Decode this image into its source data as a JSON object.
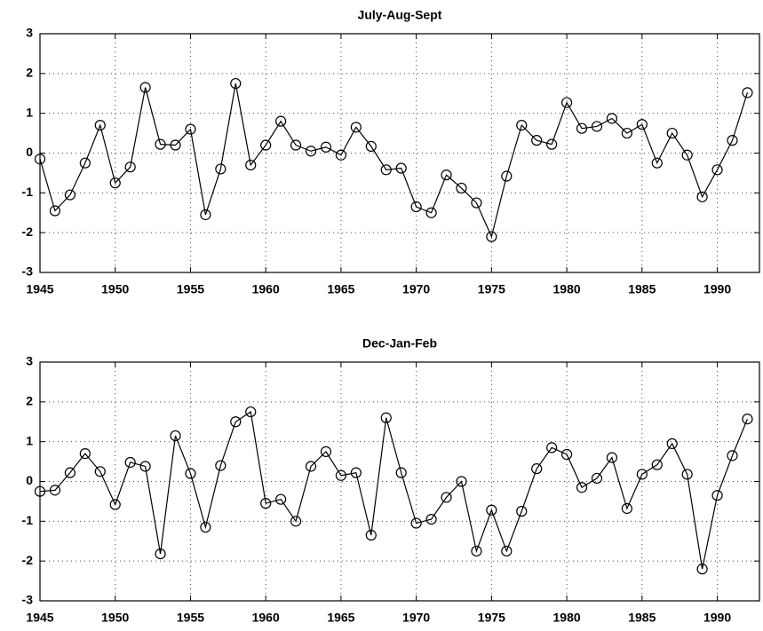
{
  "chart_data": [
    {
      "type": "line",
      "title": "July-Aug-Sept",
      "x": [
        1945,
        1946,
        1947,
        1948,
        1949,
        1950,
        1951,
        1952,
        1953,
        1954,
        1955,
        1956,
        1957,
        1958,
        1959,
        1960,
        1961,
        1962,
        1963,
        1964,
        1965,
        1966,
        1967,
        1968,
        1969,
        1970,
        1971,
        1972,
        1973,
        1974,
        1975,
        1976,
        1977,
        1978,
        1979,
        1980,
        1981,
        1982,
        1983,
        1984,
        1985,
        1986,
        1987,
        1988,
        1989,
        1990,
        1991,
        1992
      ],
      "values": [
        -0.15,
        -1.45,
        -1.05,
        -0.25,
        0.7,
        -0.75,
        -0.35,
        1.65,
        0.22,
        0.2,
        0.6,
        -1.55,
        -0.4,
        1.75,
        -0.3,
        0.2,
        0.8,
        0.2,
        0.05,
        0.15,
        -0.05,
        0.65,
        0.17,
        -0.42,
        -0.38,
        -1.35,
        -1.5,
        -0.55,
        -0.88,
        -1.25,
        -2.1,
        -0.58,
        0.7,
        0.32,
        0.22,
        1.27,
        0.62,
        0.67,
        0.87,
        0.5,
        0.72,
        -0.25,
        0.5,
        -0.05,
        -1.1,
        -0.42,
        0.32,
        1.52
      ],
      "color": "#000000",
      "marker": "circle",
      "xlim": [
        1945,
        1992.8
      ],
      "xticks": [
        1945,
        1950,
        1955,
        1960,
        1965,
        1970,
        1975,
        1980,
        1985,
        1990
      ],
      "ylim": [
        -3,
        3
      ],
      "yticks": [
        -3,
        -2,
        -1,
        0,
        1,
        2,
        3
      ],
      "grid": true
    },
    {
      "type": "line",
      "title": "Dec-Jan-Feb",
      "x": [
        1945,
        1946,
        1947,
        1948,
        1949,
        1950,
        1951,
        1952,
        1953,
        1954,
        1955,
        1956,
        1957,
        1958,
        1959,
        1960,
        1961,
        1962,
        1963,
        1964,
        1965,
        1966,
        1967,
        1968,
        1969,
        1970,
        1971,
        1972,
        1973,
        1974,
        1975,
        1976,
        1977,
        1978,
        1979,
        1980,
        1981,
        1982,
        1983,
        1984,
        1985,
        1986,
        1987,
        1988,
        1989,
        1990,
        1991,
        1992
      ],
      "values": [
        -0.25,
        -0.22,
        0.22,
        0.7,
        0.25,
        -0.58,
        0.48,
        0.38,
        -1.82,
        1.15,
        0.2,
        -1.15,
        0.4,
        1.5,
        1.75,
        -0.55,
        -0.45,
        -1.0,
        0.38,
        0.75,
        0.15,
        0.22,
        -1.35,
        1.6,
        0.22,
        -1.05,
        -0.95,
        -0.4,
        0.0,
        -1.75,
        -0.72,
        -1.75,
        -0.75,
        0.32,
        0.85,
        0.68,
        -0.15,
        0.08,
        0.6,
        -0.68,
        0.18,
        0.42,
        0.95,
        0.18,
        -2.2,
        -0.35,
        0.65,
        1.57
      ],
      "color": "#000000",
      "marker": "circle",
      "xlim": [
        1945,
        1992.8
      ],
      "xticks": [
        1945,
        1950,
        1955,
        1960,
        1965,
        1970,
        1975,
        1980,
        1985,
        1990
      ],
      "ylim": [
        -3,
        3
      ],
      "yticks": [
        -3,
        -2,
        -1,
        0,
        1,
        2,
        3
      ],
      "grid": true
    }
  ]
}
